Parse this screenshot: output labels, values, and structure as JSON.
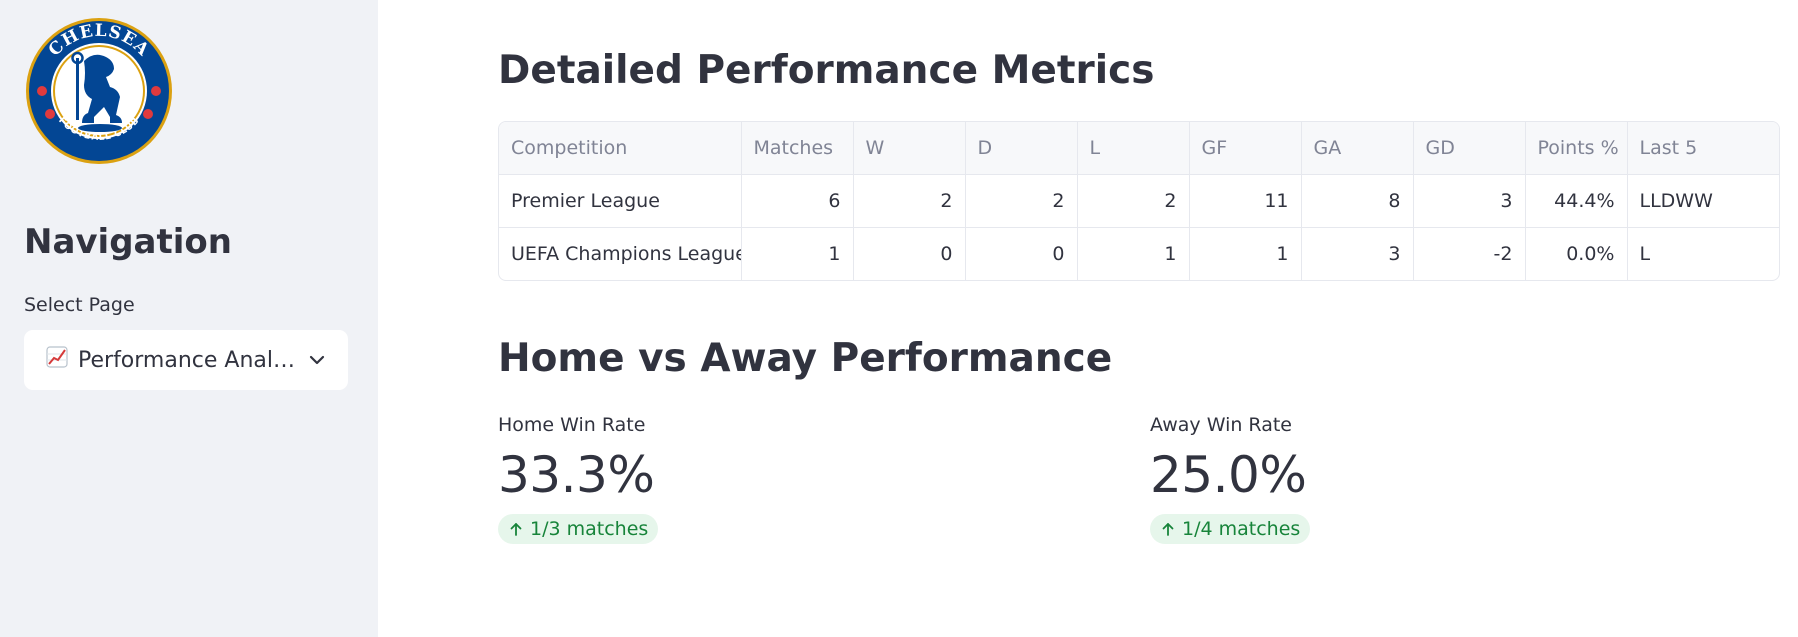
{
  "sidebar": {
    "logo": {
      "top_text": "CHELSEA",
      "bottom_text": "FOOTBALL CLUB",
      "colors": {
        "blue": "#034694",
        "gold": "#dba111",
        "red": "#e03a3e"
      }
    },
    "nav_title": "Navigation",
    "select_label": "Select Page",
    "select_value": "Performance Analysis",
    "select_icon": "chart-increasing-emoji"
  },
  "main": {
    "metrics_title": "Detailed Performance Metrics",
    "table": {
      "columns": [
        "Competition",
        "Matches",
        "W",
        "D",
        "L",
        "GF",
        "GA",
        "GD",
        "Points %",
        "Last 5"
      ],
      "rows": [
        [
          "Premier League",
          "6",
          "2",
          "2",
          "2",
          "11",
          "8",
          "3",
          "44.4%",
          "LLDWW"
        ],
        [
          "UEFA Champions League",
          "1",
          "0",
          "0",
          "1",
          "1",
          "3",
          "-2",
          "0.0%",
          "L"
        ]
      ]
    },
    "home_away_title": "Home vs Away Performance",
    "home": {
      "label": "Home Win Rate",
      "value": "33.3%",
      "delta": "1/3 matches"
    },
    "away": {
      "label": "Away Win Rate",
      "value": "25.0%",
      "delta": "1/4 matches"
    },
    "colors": {
      "delta_bg": "#e6f6eb",
      "delta_fg": "#17843a"
    }
  }
}
